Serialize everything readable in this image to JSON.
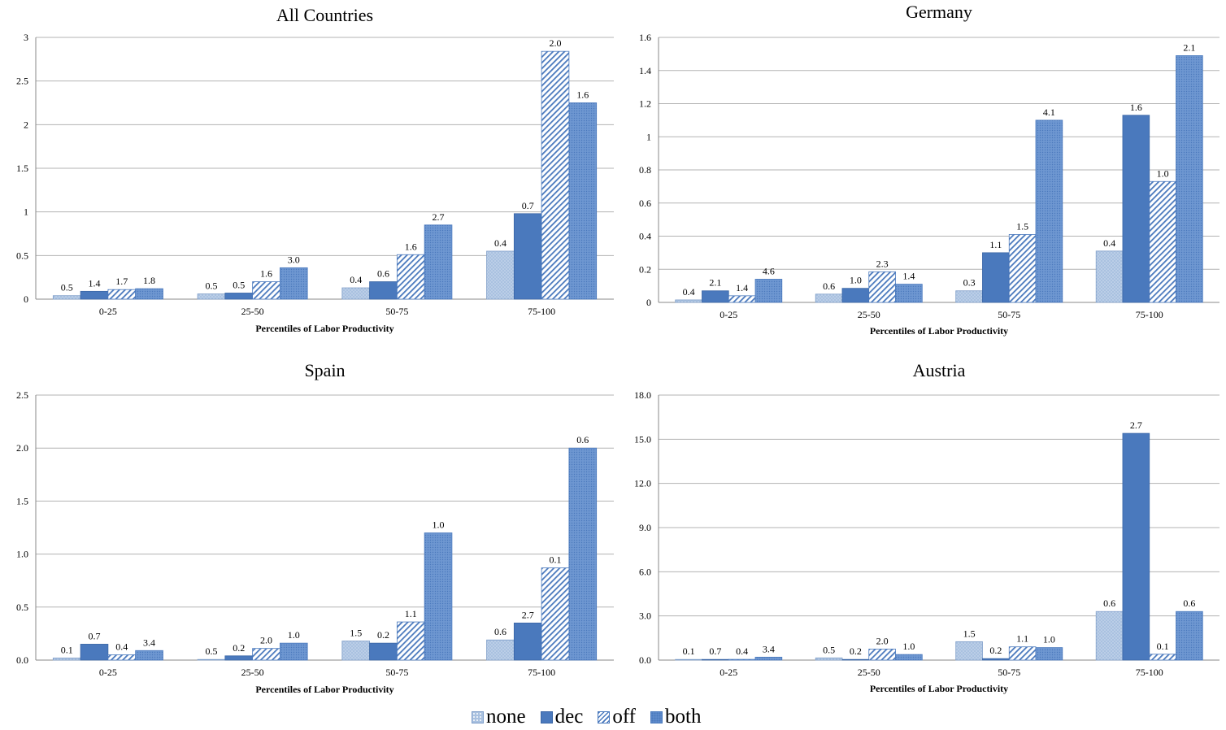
{
  "chart_data": [
    {
      "type": "bar",
      "title": "All Countries",
      "xlabel": "Percentiles of Labor Productivity",
      "ylabel": "",
      "categories": [
        "0-25",
        "25-50",
        "50-75",
        "75-100"
      ],
      "ylim": [
        0,
        3
      ],
      "yticks": [
        "0",
        "0.5",
        "1",
        "1.5",
        "2",
        "2.5",
        "3"
      ],
      "series": [
        {
          "name": "none",
          "values": [
            0.04,
            0.06,
            0.13,
            0.55
          ],
          "labels": [
            "0.5",
            "0.5",
            "0.4",
            "0.4"
          ]
        },
        {
          "name": "dec",
          "values": [
            0.09,
            0.07,
            0.2,
            0.98
          ],
          "labels": [
            "1.4",
            "0.5",
            "0.6",
            "0.7"
          ]
        },
        {
          "name": "off",
          "values": [
            0.11,
            0.2,
            0.51,
            2.84
          ],
          "labels": [
            "1.7",
            "1.6",
            "1.6",
            "2.0"
          ]
        },
        {
          "name": "both",
          "values": [
            0.12,
            0.36,
            0.85,
            2.25
          ],
          "labels": [
            "1.8",
            "3.0",
            "2.7",
            "1.6"
          ]
        }
      ]
    },
    {
      "type": "bar",
      "title": "Germany",
      "xlabel": "Percentiles of Labor Productivity",
      "ylabel": "",
      "categories": [
        "0-25",
        "25-50",
        "50-75",
        "75-100"
      ],
      "ylim": [
        0,
        1.6
      ],
      "yticks": [
        "0",
        "0.2",
        "0.4",
        "0.6",
        "0.8",
        "1",
        "1.2",
        "1.4",
        "1.6"
      ],
      "series": [
        {
          "name": "none",
          "values": [
            0.015,
            0.05,
            0.07,
            0.31
          ],
          "labels": [
            "0.4",
            "0.6",
            "0.3",
            "0.4"
          ]
        },
        {
          "name": "dec",
          "values": [
            0.07,
            0.085,
            0.3,
            1.13
          ],
          "labels": [
            "2.1",
            "1.0",
            "1.1",
            "1.6"
          ]
        },
        {
          "name": "off",
          "values": [
            0.04,
            0.185,
            0.41,
            0.73
          ],
          "labels": [
            "1.4",
            "2.3",
            "1.5",
            "1.0"
          ]
        },
        {
          "name": "both",
          "values": [
            0.14,
            0.11,
            1.1,
            1.49
          ],
          "labels": [
            "4.6",
            "1.4",
            "4.1",
            "2.1"
          ]
        }
      ]
    },
    {
      "type": "bar",
      "title": "Spain",
      "xlabel": "Percentiles of Labor Productivity",
      "ylabel": "",
      "categories": [
        "0-25",
        "25-50",
        "50-75",
        "75-100"
      ],
      "ylim": [
        0,
        2.5
      ],
      "yticks": [
        "0.0",
        "0.5",
        "1.0",
        "1.5",
        "2.0",
        "2.5"
      ],
      "series": [
        {
          "name": "none",
          "values": [
            0.02,
            0.005,
            0.18,
            0.19
          ],
          "labels": [
            "0.1",
            "0.5",
            "1.5",
            "0.6"
          ]
        },
        {
          "name": "dec",
          "values": [
            0.15,
            0.04,
            0.16,
            0.35
          ],
          "labels": [
            "0.7",
            "0.2",
            "0.2",
            "2.7"
          ]
        },
        {
          "name": "off",
          "values": [
            0.05,
            0.11,
            0.36,
            0.87
          ],
          "labels": [
            "0.4",
            "2.0",
            "1.1",
            "0.1"
          ]
        },
        {
          "name": "both",
          "values": [
            0.09,
            0.16,
            1.2,
            2.0
          ],
          "labels": [
            "3.4",
            "1.0",
            "1.0",
            "0.6"
          ]
        }
      ]
    },
    {
      "type": "bar",
      "title": "Austria",
      "xlabel": "Percentiles of Labor Productivity",
      "ylabel": "",
      "categories": [
        "0-25",
        "25-50",
        "50-75",
        "75-100"
      ],
      "ylim": [
        0,
        18
      ],
      "yticks": [
        "0.0",
        "3.0",
        "6.0",
        "9.0",
        "12.0",
        "15.0",
        "18.0"
      ],
      "series": [
        {
          "name": "none",
          "values": [
            0.02,
            0.15,
            1.25,
            3.3
          ],
          "labels": [
            "0.1",
            "0.5",
            "1.5",
            "0.6"
          ]
        },
        {
          "name": "dec",
          "values": [
            0.02,
            0.02,
            0.1,
            15.4
          ],
          "labels": [
            "0.7",
            "0.2",
            "0.2",
            "2.7"
          ]
        },
        {
          "name": "off",
          "values": [
            0.05,
            0.75,
            0.9,
            0.4
          ],
          "labels": [
            "0.4",
            "2.0",
            "1.1",
            "0.1"
          ]
        },
        {
          "name": "both",
          "values": [
            0.2,
            0.38,
            0.85,
            3.3
          ],
          "labels": [
            "3.4",
            "1.0",
            "1.0",
            "0.6"
          ]
        }
      ]
    }
  ],
  "legend": {
    "items": [
      {
        "key": "none",
        "label": "none"
      },
      {
        "key": "dec",
        "label": "dec"
      },
      {
        "key": "off",
        "label": "off"
      },
      {
        "key": "both",
        "label": "both"
      }
    ]
  },
  "colors": {
    "none_fill": "#a9c1e0",
    "dec_fill": "#4a79bd",
    "off_stripe": "#4a79bd",
    "both_fill": "#5f8ccc",
    "gridline": "#b3b3b3"
  }
}
